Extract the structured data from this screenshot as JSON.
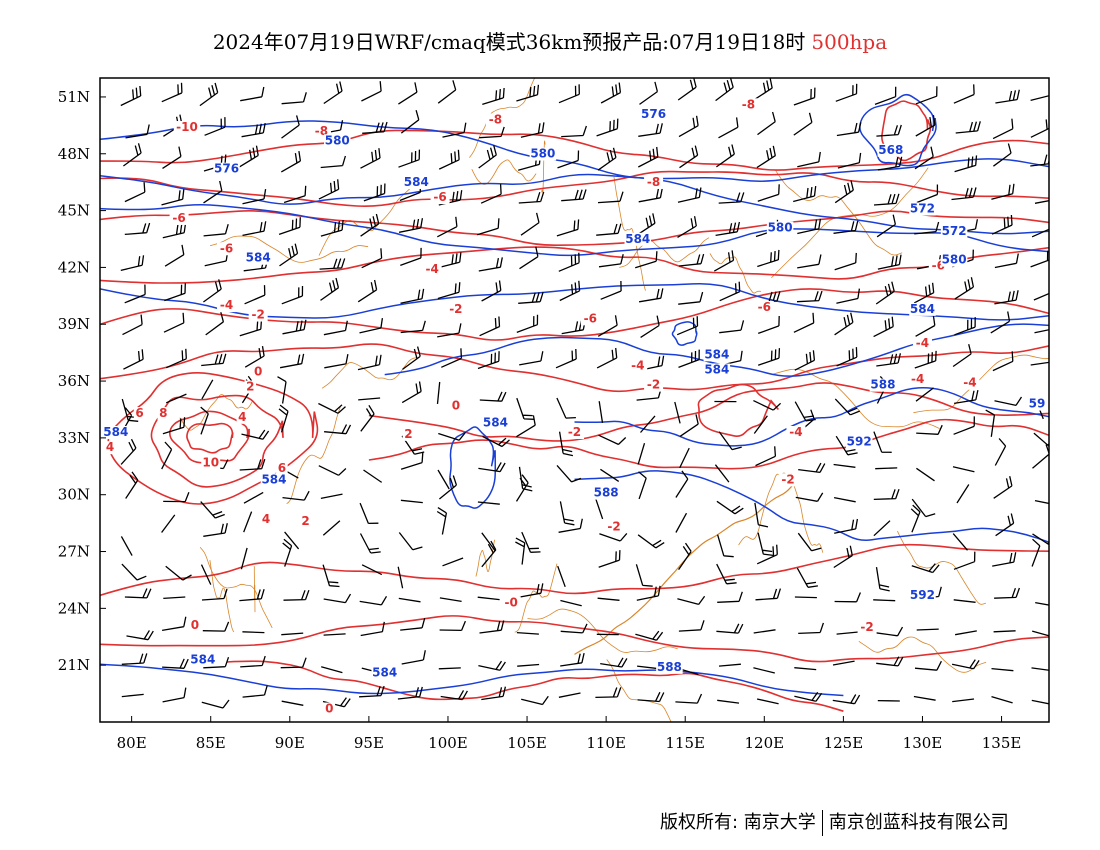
{
  "title": {
    "main": "2024年07月19日WRF/cmaq模式36km预报产品:07月19日18时",
    "level": "500hpa",
    "level_color": "#e03030"
  },
  "axes": {
    "lon_range": [
      78,
      138
    ],
    "lat_range": [
      18,
      52
    ],
    "x_ticks": [
      {
        "value": 80,
        "label": "80E"
      },
      {
        "value": 85,
        "label": "85E"
      },
      {
        "value": 90,
        "label": "90E"
      },
      {
        "value": 95,
        "label": "95E"
      },
      {
        "value": 100,
        "label": "100E"
      },
      {
        "value": 105,
        "label": "105E"
      },
      {
        "value": 110,
        "label": "110E"
      },
      {
        "value": 115,
        "label": "115E"
      },
      {
        "value": 120,
        "label": "120E"
      },
      {
        "value": 125,
        "label": "125E"
      },
      {
        "value": 130,
        "label": "130E"
      },
      {
        "value": 135,
        "label": "135E"
      }
    ],
    "y_ticks": [
      {
        "value": 21,
        "label": "21N"
      },
      {
        "value": 24,
        "label": "24N"
      },
      {
        "value": 27,
        "label": "27N"
      },
      {
        "value": 30,
        "label": "30N"
      },
      {
        "value": 33,
        "label": "33N"
      },
      {
        "value": 36,
        "label": "36N"
      },
      {
        "value": 39,
        "label": "39N"
      },
      {
        "value": 42,
        "label": "42N"
      },
      {
        "value": 45,
        "label": "45N"
      },
      {
        "value": 48,
        "label": "48N"
      },
      {
        "value": 51,
        "label": "51N"
      }
    ]
  },
  "colors": {
    "height_contour": "#1a3fd6",
    "temperature_contour": "#e03030",
    "boundary": "#d9862b",
    "wind_barb": "#000000"
  },
  "height_contours": [
    {
      "label": "568",
      "lon": 128,
      "lat": 48
    },
    {
      "label": "572",
      "lon": 130,
      "lat": 44.9
    },
    {
      "label": "572",
      "lon": 132,
      "lat": 43.7
    },
    {
      "label": "576",
      "lon": 86,
      "lat": 47
    },
    {
      "label": "576",
      "lon": 113,
      "lat": 49.9
    },
    {
      "label": "580",
      "lon": 93,
      "lat": 48.5
    },
    {
      "label": "580",
      "lon": 106,
      "lat": 47.8
    },
    {
      "label": "580",
      "lon": 121,
      "lat": 43.9
    },
    {
      "label": "580",
      "lon": 132,
      "lat": 42.2
    },
    {
      "label": "584",
      "lon": 88,
      "lat": 42.3
    },
    {
      "label": "584",
      "lon": 98,
      "lat": 46.3
    },
    {
      "label": "584",
      "lon": 112,
      "lat": 43.3
    },
    {
      "label": "584",
      "lon": 130,
      "lat": 39.6
    },
    {
      "label": "584",
      "lon": 117,
      "lat": 37.2
    },
    {
      "label": "584",
      "lon": 117,
      "lat": 36.4
    },
    {
      "label": "584",
      "lon": 103,
      "lat": 33.6
    },
    {
      "label": "584",
      "lon": 79,
      "lat": 33.1
    },
    {
      "label": "584",
      "lon": 89,
      "lat": 30.6
    },
    {
      "label": "584",
      "lon": 84.5,
      "lat": 21.1
    },
    {
      "label": "584",
      "lon": 96,
      "lat": 20.4
    },
    {
      "label": "588",
      "lon": 110,
      "lat": 29.9
    },
    {
      "label": "588",
      "lon": 114,
      "lat": 20.7
    },
    {
      "label": "588",
      "lon": 127.5,
      "lat": 35.6
    },
    {
      "label": "592",
      "lon": 126,
      "lat": 32.6
    },
    {
      "label": "592",
      "lon": 130,
      "lat": 24.5
    },
    {
      "label": "59",
      "lon": 137.8,
      "lat": 34.6
    }
  ],
  "temperature_contours": [
    {
      "label": "-10",
      "lon": 83.5,
      "lat": 49.2
    },
    {
      "label": "-8",
      "lon": 92,
      "lat": 49
    },
    {
      "label": "-8",
      "lon": 103,
      "lat": 49.6
    },
    {
      "label": "-8",
      "lon": 119,
      "lat": 50.4
    },
    {
      "label": "-8",
      "lon": 113,
      "lat": 46.3
    },
    {
      "label": "-6",
      "lon": 83,
      "lat": 44.4
    },
    {
      "label": "-6",
      "lon": 99.5,
      "lat": 45.5
    },
    {
      "label": "-6",
      "lon": 86,
      "lat": 42.8
    },
    {
      "label": "-6",
      "lon": 109,
      "lat": 39.1
    },
    {
      "label": "-6",
      "lon": 120,
      "lat": 39.7
    },
    {
      "label": "-6",
      "lon": 131,
      "lat": 41.9
    },
    {
      "label": "-4",
      "lon": 99,
      "lat": 41.7
    },
    {
      "label": "-4",
      "lon": 86,
      "lat": 39.8
    },
    {
      "label": "-4",
      "lon": 112,
      "lat": 36.6
    },
    {
      "label": "-4",
      "lon": 130,
      "lat": 37.8
    },
    {
      "label": "-4",
      "lon": 129.7,
      "lat": 35.9
    },
    {
      "label": "-4",
      "lon": 133,
      "lat": 35.7
    },
    {
      "label": "-4",
      "lon": 122,
      "lat": 33.1
    },
    {
      "label": "-2",
      "lon": 88,
      "lat": 39.3
    },
    {
      "label": "-2",
      "lon": 100.5,
      "lat": 39.6
    },
    {
      "label": "-2",
      "lon": 113,
      "lat": 35.6
    },
    {
      "label": "-2",
      "lon": 108,
      "lat": 33.1
    },
    {
      "label": "-2",
      "lon": 110.5,
      "lat": 28.1
    },
    {
      "label": "-2",
      "lon": 126.5,
      "lat": 22.8
    },
    {
      "label": "-2",
      "lon": 121.5,
      "lat": 30.6
    },
    {
      "label": "-0",
      "lon": 104,
      "lat": 24.1
    },
    {
      "label": "0",
      "lon": 88,
      "lat": 36.3
    },
    {
      "label": "0",
      "lon": 100.5,
      "lat": 34.5
    },
    {
      "label": "0",
      "lon": 84,
      "lat": 22.9
    },
    {
      "label": "0",
      "lon": 92.5,
      "lat": 18.5
    },
    {
      "label": "2",
      "lon": 87.5,
      "lat": 35.5
    },
    {
      "label": "2",
      "lon": 97.5,
      "lat": 33
    },
    {
      "label": "2",
      "lon": 91,
      "lat": 28.4
    },
    {
      "label": "4",
      "lon": 87,
      "lat": 33.9
    },
    {
      "label": "4",
      "lon": 88.5,
      "lat": 28.5
    },
    {
      "label": "4",
      "lon": 78.3,
      "lat": 32.3
    },
    {
      "label": "6",
      "lon": 80.5,
      "lat": 34.1
    },
    {
      "label": "6",
      "lon": 89.5,
      "lat": 31.2
    },
    {
      "label": "8",
      "lon": 82,
      "lat": 34.1
    },
    {
      "label": "10",
      "lon": 85,
      "lat": 31.5
    }
  ],
  "footer": {
    "copyright": "版权所有: 南京大学",
    "company": "南京创蓝科技有限公司"
  }
}
